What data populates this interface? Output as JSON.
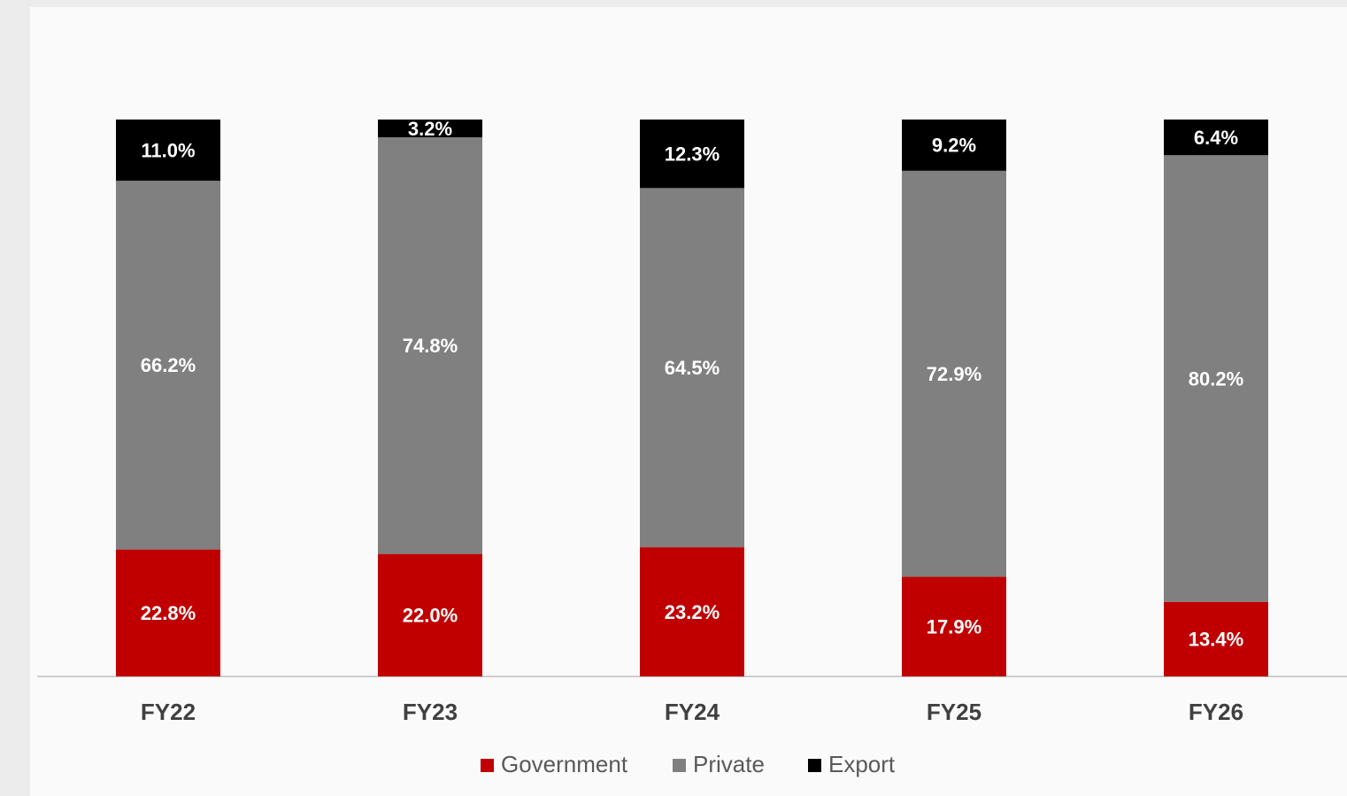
{
  "chart_data": {
    "type": "stacked_bar",
    "categories": [
      "FY22",
      "FY23",
      "FY24",
      "FY25",
      "FY26"
    ],
    "series": [
      {
        "name": "Government",
        "color": "#c00000",
        "values": [
          22.8,
          22.0,
          23.2,
          17.9,
          13.4
        ],
        "value_labels": [
          "22.8%",
          "22.0%",
          "23.2%",
          "17.9%",
          "13.4%"
        ]
      },
      {
        "name": "Private",
        "color": "#808080",
        "values": [
          66.2,
          74.8,
          64.5,
          72.9,
          80.2
        ],
        "value_labels": [
          "66.2%",
          "74.8%",
          "64.5%",
          "72.9%",
          "80.2%"
        ]
      },
      {
        "name": "Export",
        "color": "#000000",
        "values": [
          11.0,
          3.2,
          12.3,
          9.2,
          6.4
        ],
        "value_labels": [
          "11.0%",
          "3.2%",
          "12.3%",
          "9.2%",
          "6.4%"
        ]
      }
    ],
    "ylim": [
      0,
      100
    ],
    "legend": "bottom"
  }
}
